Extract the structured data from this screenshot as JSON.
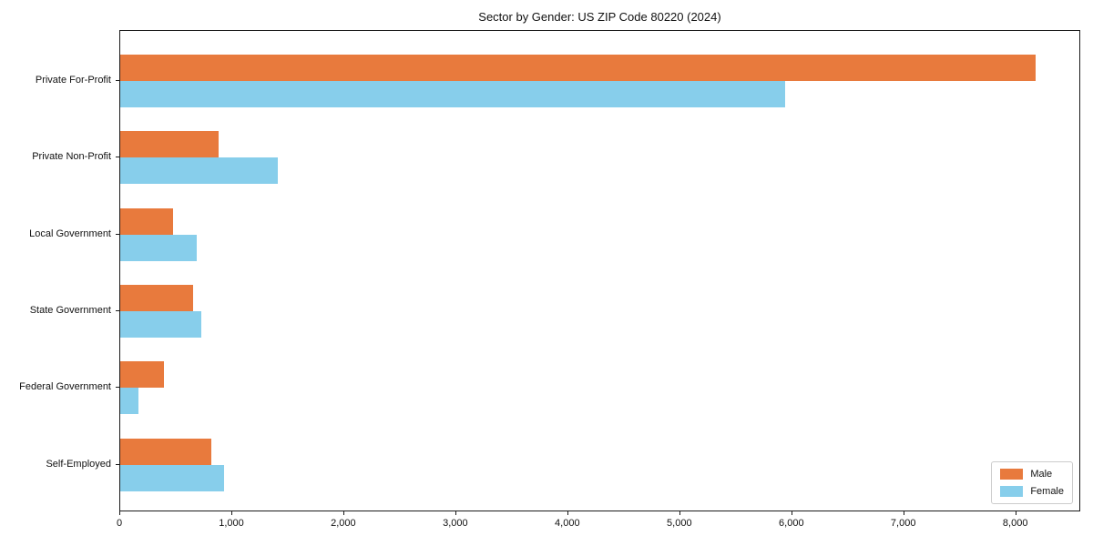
{
  "chart_data": {
    "type": "bar",
    "orientation": "horizontal",
    "title": "Sector by Gender: US ZIP Code 80220 (2024)",
    "categories": [
      "Private For-Profit",
      "Private Non-Profit",
      "Local Government",
      "State Government",
      "Federal Government",
      "Self-Employed"
    ],
    "series": [
      {
        "name": "Male",
        "color": "#e87a3d",
        "values": [
          8170,
          875,
          470,
          650,
          390,
          815
        ]
      },
      {
        "name": "Female",
        "color": "#87ceeb",
        "values": [
          5940,
          1410,
          685,
          720,
          165,
          925
        ]
      }
    ],
    "xlabel": "",
    "ylabel": "",
    "xlim": [
      0,
      8580
    ],
    "xticks": [
      0,
      1000,
      2000,
      3000,
      4000,
      5000,
      6000,
      7000,
      8000
    ],
    "xtick_labels": [
      "0",
      "1,000",
      "2,000",
      "3,000",
      "4,000",
      "5,000",
      "6,000",
      "7,000",
      "8,000"
    ],
    "grid": false,
    "legend": {
      "position": "lower right",
      "entries": [
        "Male",
        "Female"
      ]
    }
  }
}
